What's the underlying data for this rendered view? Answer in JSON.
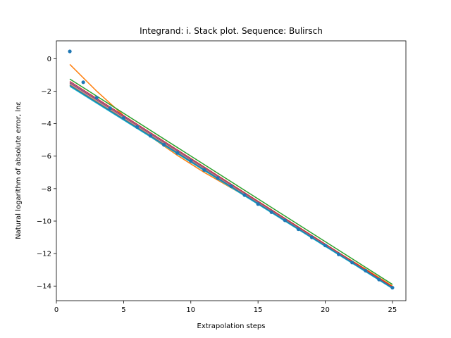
{
  "chart_data": {
    "type": "line",
    "title": "Integrand: i. Stack plot. Sequence: Bulirsch",
    "xlabel": "Extrapolation steps",
    "ylabel": "Natural logarithm of absolute error, lnε",
    "xlim": [
      0,
      26
    ],
    "ylim": [
      -14.9,
      1.1
    ],
    "xticks": [
      0,
      5,
      10,
      15,
      20,
      25
    ],
    "yticks": [
      0,
      -2,
      -4,
      -6,
      -8,
      -10,
      -12,
      -14
    ],
    "grid": false,
    "scatter": {
      "color": "#1f77b4",
      "x": [
        1,
        2,
        3,
        4,
        5,
        6,
        7,
        8,
        9,
        10,
        11,
        12,
        13,
        14,
        15,
        16,
        17,
        18,
        19,
        20,
        21,
        22,
        23,
        24,
        25
      ],
      "y": [
        0.45,
        -1.45,
        -2.4,
        -3.05,
        -3.65,
        -4.2,
        -4.75,
        -5.3,
        -5.8,
        -6.3,
        -6.85,
        -7.35,
        -7.85,
        -8.4,
        -8.95,
        -9.45,
        -9.95,
        -10.5,
        -11.0,
        -11.5,
        -12.05,
        -12.55,
        -13.05,
        -13.6,
        -14.1
      ]
    },
    "series": [
      {
        "color": "#ff7f0e",
        "x": [
          1,
          3,
          5,
          7,
          9,
          11,
          13,
          15,
          17,
          19,
          21,
          23,
          25
        ],
        "y": [
          -0.35,
          -2.0,
          -3.5,
          -4.8,
          -5.95,
          -7.0,
          -7.95,
          -8.9,
          -9.9,
          -10.95,
          -11.95,
          -12.95,
          -14.0
        ]
      },
      {
        "color": "#2ca02c",
        "x": [
          1,
          25
        ],
        "y": [
          -1.25,
          -13.9
        ]
      },
      {
        "color": "#d62728",
        "x": [
          1,
          25
        ],
        "y": [
          -1.4,
          -14.05
        ]
      },
      {
        "color": "#9467bd",
        "x": [
          1,
          25
        ],
        "y": [
          -1.45,
          -14.1
        ]
      },
      {
        "color": "#8c564b",
        "x": [
          1,
          25
        ],
        "y": [
          -1.5,
          -14.1
        ]
      },
      {
        "color": "#e377c2",
        "x": [
          1,
          25
        ],
        "y": [
          -1.55,
          -14.12
        ]
      },
      {
        "color": "#7f7f7f",
        "x": [
          1,
          25
        ],
        "y": [
          -1.6,
          -14.12
        ]
      },
      {
        "color": "#bcbd22",
        "x": [
          1,
          25
        ],
        "y": [
          -1.62,
          -14.13
        ]
      },
      {
        "color": "#17becf",
        "x": [
          1,
          25
        ],
        "y": [
          -1.7,
          -14.15
        ]
      },
      {
        "color": "#1f77b4",
        "x": [
          1,
          25
        ],
        "y": [
          -1.65,
          -14.12
        ]
      }
    ]
  }
}
